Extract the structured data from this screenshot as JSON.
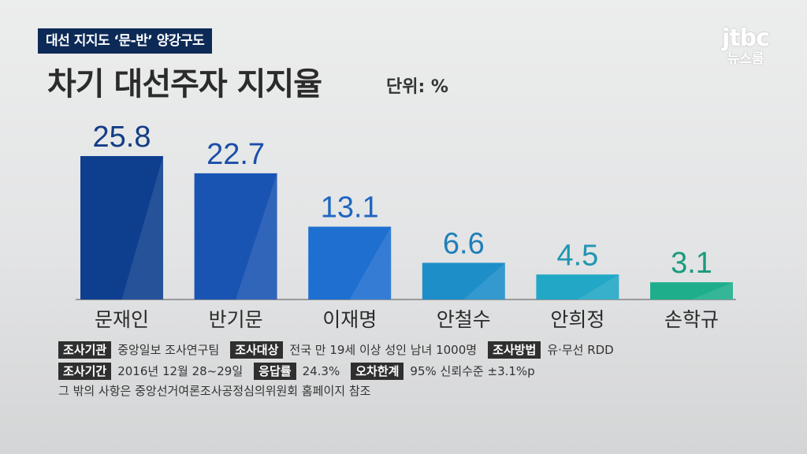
{
  "header": {
    "tag": "대선 지지도 ‘문-반’ 양강구도",
    "title": "차기 대선주자 지지율",
    "unit": "단위: %",
    "logo_top": "jtbc",
    "logo_bottom": "뉴스룸"
  },
  "chart_data": {
    "type": "bar",
    "title": "차기 대선주자 지지율",
    "categories": [
      "문재인",
      "반기문",
      "이재명",
      "안철수",
      "안희정",
      "손학규"
    ],
    "values": [
      25.8,
      22.7,
      13.1,
      6.6,
      4.5,
      3.1
    ],
    "value_labels": [
      "25.8",
      "22.7",
      "13.1",
      "6.6",
      "4.5",
      "3.1"
    ],
    "ylim": [
      0,
      25.8
    ],
    "grid": false,
    "colors": [
      "#0e3f8f",
      "#1a54b3",
      "#1f6fd0",
      "#1e8ec9",
      "#22a7c6",
      "#1fae8c"
    ],
    "label_colors": [
      "#133d85",
      "#1a4fa8",
      "#1f66c2",
      "#1f7fb8",
      "#1f96b2",
      "#189b7d"
    ]
  },
  "notes": {
    "row1": [
      {
        "label": "조사기관",
        "value": "중앙일보 조사연구팀"
      },
      {
        "label": "조사대상",
        "value": "전국 만 19세 이상 성인 남녀 1000명"
      },
      {
        "label": "조사방법",
        "value": "유·무선 RDD"
      }
    ],
    "row2": [
      {
        "label": "조사기간",
        "value": "2016년 12월 28~29일"
      },
      {
        "label": "응답률",
        "value": "24.3%"
      },
      {
        "label": "오차한계",
        "value": "95% 신뢰수준 ±3.1%p"
      }
    ],
    "footer": "그 밖의 사항은 중앙선거여론조사공정심의위원회 홈페이지 참조"
  }
}
